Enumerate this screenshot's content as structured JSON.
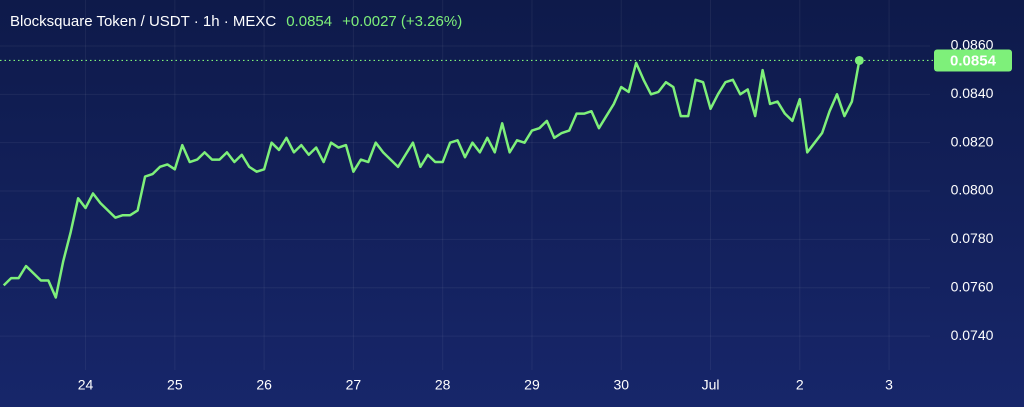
{
  "chart_data": {
    "type": "line",
    "title": "Blocksquare Token / USDT · 1h · MEXC",
    "change": "+0.0027 (+3.26%)",
    "x": [
      2,
      4,
      6,
      8,
      10,
      12,
      14,
      16,
      18,
      20,
      22,
      24,
      26,
      28,
      30,
      32,
      34,
      36,
      38,
      40,
      42,
      44,
      46,
      48,
      50,
      52,
      54,
      56,
      58,
      60,
      62,
      64,
      66,
      68,
      70,
      72,
      74,
      76,
      78,
      80,
      82,
      84,
      86,
      88,
      90,
      92,
      94,
      96,
      98,
      100,
      102,
      104,
      106,
      108,
      110,
      112,
      114,
      116,
      118,
      120,
      122,
      124,
      126,
      128,
      130,
      132,
      134,
      136,
      138,
      140,
      142,
      144,
      146,
      148,
      150,
      152,
      154,
      156,
      158,
      160,
      162,
      164,
      166,
      168,
      170,
      172,
      174,
      176,
      178,
      180,
      182,
      184,
      186,
      188,
      190,
      192,
      194,
      196,
      198,
      200,
      202,
      204,
      206,
      208,
      210,
      212,
      214,
      216,
      218,
      220,
      222,
      224,
      226,
      228,
      230,
      232
    ],
    "series": [
      {
        "name": "Blocksquare Token / USDT",
        "color": "#7ef07a",
        "values": [
          0.0761,
          0.0764,
          0.0764,
          0.0769,
          0.0766,
          0.0763,
          0.0763,
          0.0756,
          0.0771,
          0.0783,
          0.0797,
          0.0793,
          0.0799,
          0.0795,
          0.0792,
          0.0789,
          0.079,
          0.079,
          0.0792,
          0.0806,
          0.0807,
          0.081,
          0.0811,
          0.0809,
          0.0819,
          0.0812,
          0.0813,
          0.0816,
          0.0813,
          0.0813,
          0.0816,
          0.0812,
          0.0815,
          0.081,
          0.0808,
          0.0809,
          0.082,
          0.0817,
          0.0822,
          0.0816,
          0.0819,
          0.0815,
          0.0818,
          0.0812,
          0.082,
          0.0818,
          0.0819,
          0.0808,
          0.0813,
          0.0812,
          0.082,
          0.0816,
          0.0813,
          0.081,
          0.0815,
          0.082,
          0.081,
          0.0815,
          0.0812,
          0.0812,
          0.082,
          0.0821,
          0.0814,
          0.082,
          0.0816,
          0.0822,
          0.0816,
          0.0828,
          0.0816,
          0.0821,
          0.082,
          0.0825,
          0.0826,
          0.0829,
          0.0822,
          0.0824,
          0.0825,
          0.0832,
          0.0832,
          0.0833,
          0.0826,
          0.0831,
          0.0836,
          0.0843,
          0.0841,
          0.0853,
          0.0846,
          0.084,
          0.0841,
          0.0845,
          0.0843,
          0.0831,
          0.0831,
          0.0846,
          0.0845,
          0.0834,
          0.084,
          0.0845,
          0.0846,
          0.084,
          0.0842,
          0.0831,
          0.085,
          0.0836,
          0.0837,
          0.0832,
          0.0829,
          0.0838,
          0.0816,
          0.082,
          0.0824,
          0.0833,
          0.084,
          0.0831,
          0.0837,
          0.0854
        ]
      }
    ],
    "xlim": [
      1,
      251
    ],
    "ylim": [
      0.0726,
      0.0879
    ],
    "xticks": [
      {
        "value": 24,
        "label": "24"
      },
      {
        "value": 48,
        "label": "25"
      },
      {
        "value": 72,
        "label": "26"
      },
      {
        "value": 96,
        "label": "27"
      },
      {
        "value": 120,
        "label": "28"
      },
      {
        "value": 144,
        "label": "29"
      },
      {
        "value": 168,
        "label": "30"
      },
      {
        "value": 192,
        "label": "Jul"
      },
      {
        "value": 216,
        "label": "2"
      },
      {
        "value": 240,
        "label": "3"
      }
    ],
    "yticks": [
      {
        "value": 0.074,
        "label": "0.0740"
      },
      {
        "value": 0.076,
        "label": "0.0760"
      },
      {
        "value": 0.078,
        "label": "0.0780"
      },
      {
        "value": 0.08,
        "label": "0.0800"
      },
      {
        "value": 0.082,
        "label": "0.0820"
      },
      {
        "value": 0.084,
        "label": "0.0840"
      },
      {
        "value": 0.086,
        "label": "0.0860"
      }
    ],
    "grid": true
  }
}
